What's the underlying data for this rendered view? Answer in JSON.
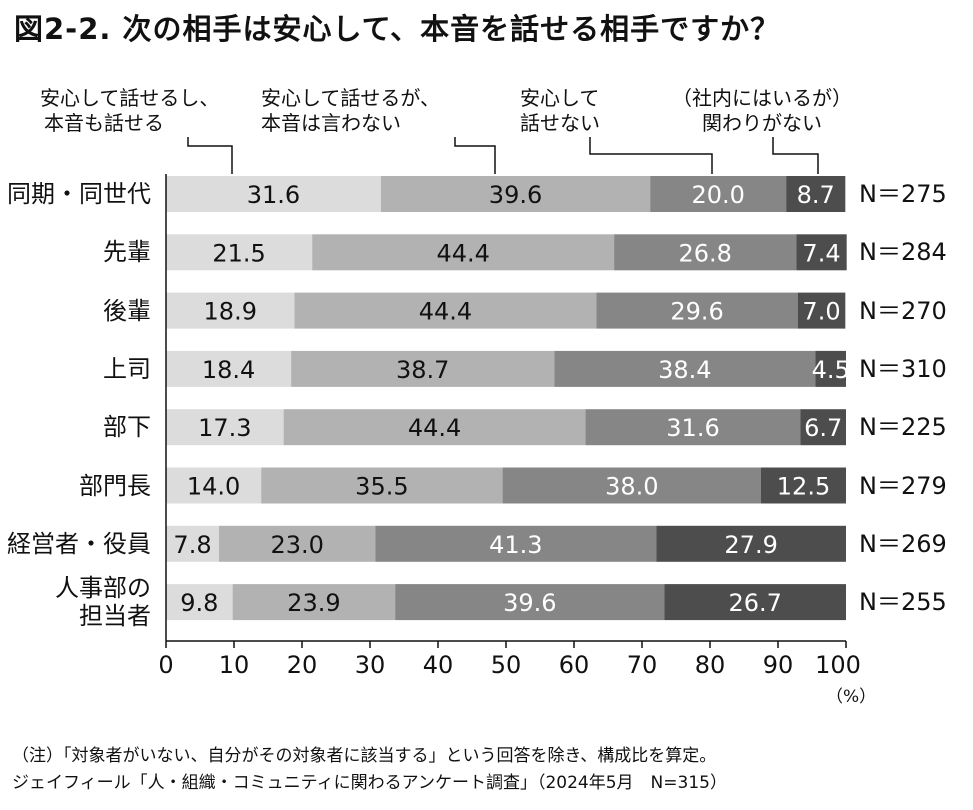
{
  "title": "図2-2. 次の相手は安心して、本音を話せる相手ですか？",
  "legend": [
    {
      "line1": "安心して話せるし、",
      "line2": "本音も話せる"
    },
    {
      "line1": "安心して話せるが、",
      "line2": "本音は言わない"
    },
    {
      "line1": "安心して",
      "line2": "話せない"
    },
    {
      "line1": "（社内にはいるが）",
      "line2": "関わりがない"
    }
  ],
  "unit_label": "（%）",
  "notes": [
    "（注）「対象者がいない、自分がその対象者に該当する」という回答を除き、構成比を算定。",
    "ジェイフィール「人・組織・コミュニティに関わるアンケート調査」（2024年5月　N=315）"
  ],
  "chart_data": {
    "type": "bar",
    "orientation": "horizontal",
    "stacked": true,
    "xlim": [
      0,
      100
    ],
    "xticks": [
      0,
      10,
      20,
      30,
      40,
      50,
      60,
      70,
      80,
      90,
      100
    ],
    "categories": [
      "同期・同世代",
      "先輩",
      "後輩",
      "上司",
      "部下",
      "部門長",
      "経営者・役員",
      "人事部の担当者"
    ],
    "category_lines": [
      [
        "同期・同世代"
      ],
      [
        "先輩"
      ],
      [
        "後輩"
      ],
      [
        "上司"
      ],
      [
        "部下"
      ],
      [
        "部門長"
      ],
      [
        "経営者・役員"
      ],
      [
        "人事部の",
        "担当者"
      ]
    ],
    "n_labels": [
      "N＝275",
      "N＝284",
      "N＝270",
      "N＝310",
      "N＝225",
      "N＝279",
      "N＝269",
      "N＝255"
    ],
    "series": [
      {
        "name": "安心して話せるし、本音も話せる",
        "color": "#dcdcdc",
        "label_color": "#111111",
        "values": [
          31.6,
          21.5,
          18.9,
          18.4,
          17.3,
          14.0,
          7.8,
          9.8
        ]
      },
      {
        "name": "安心して話せるが、本音は言わない",
        "color": "#b2b2b2",
        "label_color": "#111111",
        "values": [
          39.6,
          44.4,
          44.4,
          38.7,
          44.4,
          35.5,
          23.0,
          23.9
        ]
      },
      {
        "name": "安心して話せない",
        "color": "#868686",
        "label_color": "#ffffff",
        "values": [
          20.0,
          26.8,
          29.6,
          38.4,
          31.6,
          38.0,
          41.3,
          39.6
        ]
      },
      {
        "name": "（社内にはいるが）関わりがない",
        "color": "#4d4d4d",
        "label_color": "#ffffff",
        "values": [
          8.7,
          7.4,
          7.0,
          4.5,
          6.7,
          12.5,
          27.9,
          26.7
        ]
      }
    ],
    "gridlines": false,
    "legend_position": "top"
  }
}
